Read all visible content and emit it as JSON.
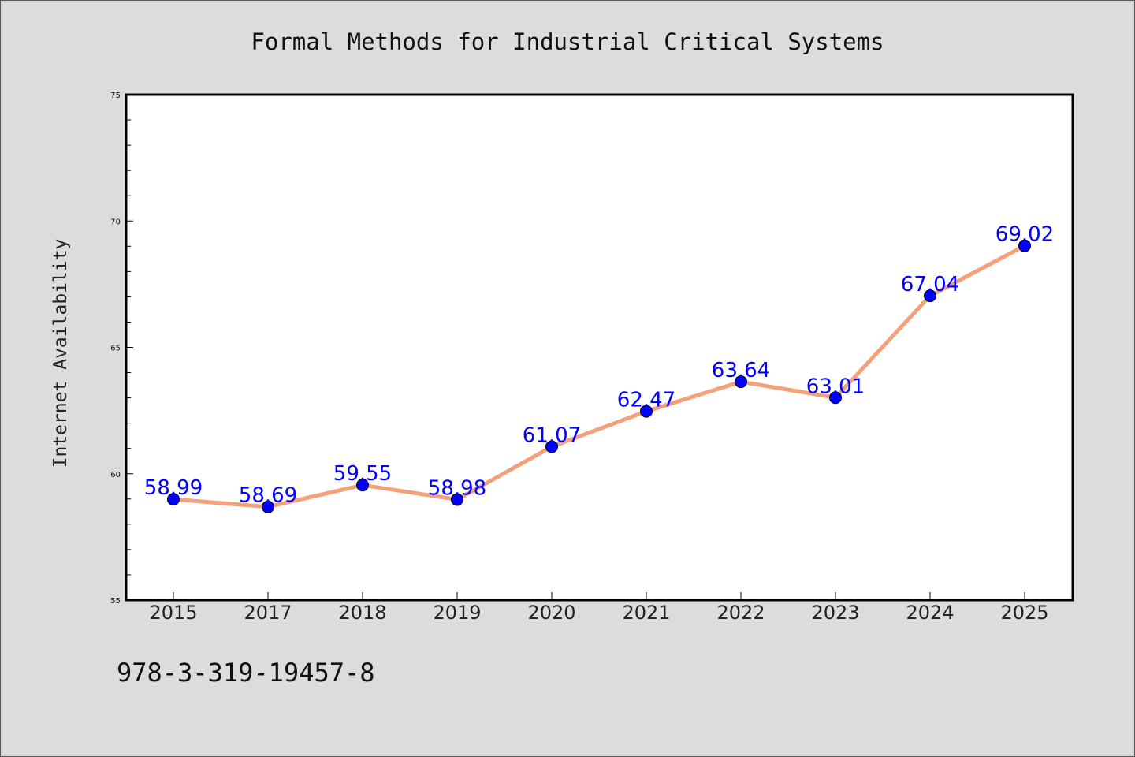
{
  "chart_data": {
    "type": "line",
    "title": "Formal Methods for Industrial Critical Systems",
    "xlabel": "",
    "ylabel": "Internet Availability",
    "categories": [
      "2015",
      "2017",
      "2018",
      "2019",
      "2020",
      "2021",
      "2022",
      "2023",
      "2024",
      "2025"
    ],
    "series": [
      {
        "values": [
          58.99,
          58.69,
          59.55,
          58.98,
          61.07,
          62.47,
          63.64,
          63.01,
          67.04,
          69.02
        ],
        "data_labels": [
          "58.99",
          "58.69",
          "59.55",
          "58.98",
          "61.07",
          "62.47",
          "63.64",
          "63.01",
          "67.04",
          "69.02"
        ],
        "line_color": "#f4a07a",
        "marker_color": "#0000ff"
      }
    ],
    "ylim": [
      55,
      75
    ],
    "yticks": [
      "55",
      "60",
      "65",
      "70",
      "75"
    ],
    "grid": false,
    "legend": "none"
  },
  "footer_text": "978-3-319-19457-8",
  "colors": {
    "background": "#dcdcdc",
    "plot_background": "#ffffff",
    "line": "#f4a07a",
    "marker": "#0000ff",
    "data_label": "#0000ff"
  }
}
